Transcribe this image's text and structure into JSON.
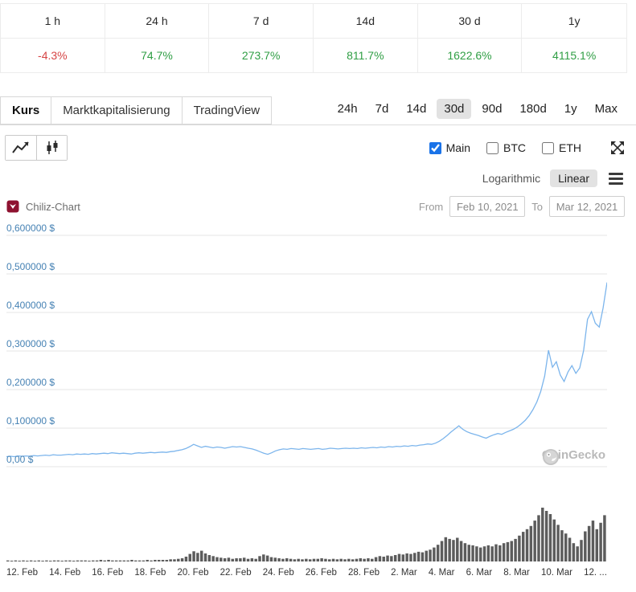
{
  "colors": {
    "negative": "#d64545",
    "positive": "#2f9e44",
    "checkbox_accent": "#1a73e8",
    "price_line": "#7cb5ec",
    "volume_bar": "#5c5c5c",
    "grid_line": "#e6e6e6",
    "y_label": "#4682b4",
    "logo_red": "#8e1230"
  },
  "stats": {
    "periods": [
      "1 h",
      "24 h",
      "7 d",
      "14d",
      "30 d",
      "1y"
    ],
    "values": [
      "-4.3%",
      "74.7%",
      "273.7%",
      "811.7%",
      "1622.6%",
      "4115.1%"
    ]
  },
  "tabs": [
    {
      "label": "Kurs"
    },
    {
      "label": "Marktkapitalisierung"
    },
    {
      "label": "TradingView"
    }
  ],
  "ranges": [
    "24h",
    "7d",
    "14d",
    "30d",
    "90d",
    "180d",
    "1y",
    "Max"
  ],
  "active_range": "30d",
  "overlays": {
    "main": "Main",
    "btc": "BTC",
    "eth": "ETH"
  },
  "scale": {
    "log_label": "Logarithmic",
    "linear_label": "Linear",
    "active": "Linear"
  },
  "chart_header": {
    "title": "Chiliz-Chart",
    "from_label": "From",
    "from_value": "Feb 10, 2021",
    "to_label": "To",
    "to_value": "Mar 12, 2021"
  },
  "watermark": "CoinGecko",
  "chart_data": {
    "type": "line",
    "title": "Chiliz-Chart",
    "x_start": "Feb 10, 2021",
    "x_end": "Mar 12, 2021",
    "ylim": [
      0,
      0.6
    ],
    "y_axis_labels": [
      "0,600000 $",
      "0,500000 $",
      "0,400000 $",
      "0,300000 $",
      "0,200000 $",
      "0,100000 $",
      "0,00 $"
    ],
    "x_tick_labels": [
      "12. Feb",
      "14. Feb",
      "16. Feb",
      "18. Feb",
      "20. Feb",
      "22. Feb",
      "24. Feb",
      "26. Feb",
      "28. Feb",
      "2. Mar",
      "4. Mar",
      "6. Mar",
      "8. Mar",
      "10. Mar",
      "12. ..."
    ],
    "grid": true,
    "legend": false,
    "series": [
      {
        "name": "price_usd",
        "color": "#7cb5ec",
        "values": [
          0.026,
          0.027,
          0.026,
          0.028,
          0.027,
          0.028,
          0.027,
          0.029,
          0.028,
          0.029,
          0.03,
          0.029,
          0.031,
          0.03,
          0.03,
          0.031,
          0.032,
          0.031,
          0.033,
          0.032,
          0.033,
          0.032,
          0.034,
          0.033,
          0.034,
          0.035,
          0.034,
          0.036,
          0.035,
          0.034,
          0.035,
          0.034,
          0.033,
          0.035,
          0.036,
          0.035,
          0.036,
          0.037,
          0.036,
          0.037,
          0.038,
          0.037,
          0.039,
          0.04,
          0.042,
          0.044,
          0.047,
          0.052,
          0.058,
          0.054,
          0.05,
          0.053,
          0.051,
          0.049,
          0.051,
          0.05,
          0.048,
          0.05,
          0.052,
          0.051,
          0.052,
          0.05,
          0.048,
          0.046,
          0.043,
          0.039,
          0.035,
          0.032,
          0.036,
          0.041,
          0.044,
          0.046,
          0.045,
          0.047,
          0.046,
          0.045,
          0.047,
          0.046,
          0.045,
          0.046,
          0.047,
          0.045,
          0.046,
          0.048,
          0.047,
          0.046,
          0.047,
          0.048,
          0.047,
          0.048,
          0.047,
          0.049,
          0.048,
          0.049,
          0.05,
          0.049,
          0.051,
          0.05,
          0.052,
          0.051,
          0.053,
          0.052,
          0.054,
          0.053,
          0.055,
          0.054,
          0.056,
          0.057,
          0.059,
          0.058,
          0.061,
          0.066,
          0.073,
          0.081,
          0.09,
          0.098,
          0.106,
          0.097,
          0.091,
          0.087,
          0.084,
          0.081,
          0.077,
          0.074,
          0.079,
          0.083,
          0.086,
          0.084,
          0.089,
          0.093,
          0.097,
          0.103,
          0.111,
          0.12,
          0.132,
          0.148,
          0.168,
          0.195,
          0.235,
          0.302,
          0.258,
          0.272,
          0.238,
          0.221,
          0.246,
          0.262,
          0.242,
          0.256,
          0.302,
          0.382,
          0.402,
          0.372,
          0.362,
          0.412,
          0.478
        ]
      },
      {
        "name": "volume_relative",
        "color": "#5c5c5c",
        "values": [
          0.02,
          0.01,
          0.02,
          0.01,
          0.02,
          0.01,
          0.02,
          0.01,
          0.02,
          0.01,
          0.02,
          0.01,
          0.02,
          0.02,
          0.01,
          0.02,
          0.02,
          0.01,
          0.02,
          0.02,
          0.02,
          0.01,
          0.02,
          0.02,
          0.03,
          0.02,
          0.03,
          0.02,
          0.02,
          0.02,
          0.02,
          0.02,
          0.03,
          0.02,
          0.02,
          0.02,
          0.03,
          0.02,
          0.03,
          0.03,
          0.03,
          0.03,
          0.04,
          0.04,
          0.05,
          0.06,
          0.09,
          0.14,
          0.19,
          0.16,
          0.2,
          0.15,
          0.12,
          0.1,
          0.08,
          0.07,
          0.06,
          0.07,
          0.05,
          0.06,
          0.06,
          0.07,
          0.05,
          0.06,
          0.05,
          0.1,
          0.13,
          0.11,
          0.08,
          0.07,
          0.06,
          0.05,
          0.06,
          0.05,
          0.04,
          0.05,
          0.04,
          0.05,
          0.04,
          0.05,
          0.05,
          0.06,
          0.05,
          0.04,
          0.05,
          0.04,
          0.05,
          0.04,
          0.05,
          0.04,
          0.05,
          0.06,
          0.05,
          0.06,
          0.05,
          0.08,
          0.1,
          0.09,
          0.11,
          0.1,
          0.12,
          0.14,
          0.13,
          0.15,
          0.14,
          0.16,
          0.18,
          0.17,
          0.2,
          0.22,
          0.26,
          0.31,
          0.38,
          0.45,
          0.42,
          0.4,
          0.44,
          0.38,
          0.34,
          0.31,
          0.3,
          0.28,
          0.26,
          0.28,
          0.3,
          0.28,
          0.32,
          0.3,
          0.34,
          0.36,
          0.38,
          0.42,
          0.48,
          0.55,
          0.6,
          0.66,
          0.76,
          0.86,
          1.0,
          0.94,
          0.88,
          0.78,
          0.68,
          0.58,
          0.52,
          0.44,
          0.34,
          0.28,
          0.4,
          0.56,
          0.66,
          0.76,
          0.6,
          0.72,
          0.86
        ]
      }
    ]
  }
}
